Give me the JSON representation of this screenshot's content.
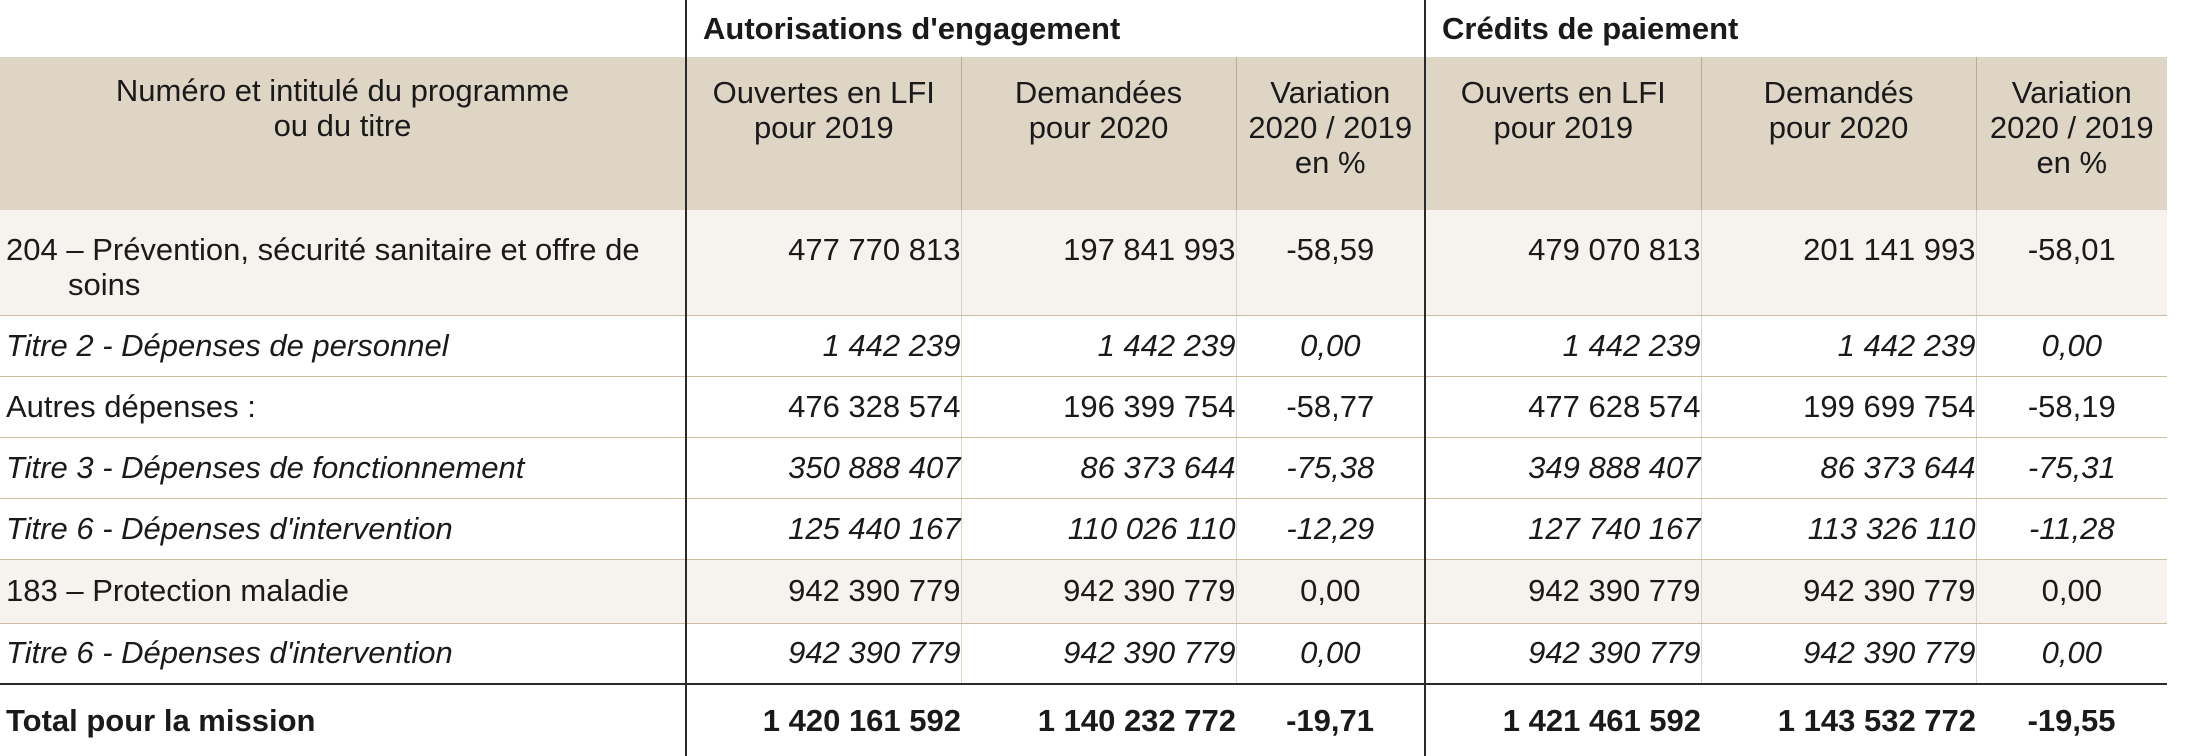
{
  "groups": {
    "ae": "Autorisations d'engagement",
    "cp": "Crédits de paiement"
  },
  "columns": {
    "label_line1": "Numéro et intitulé du programme",
    "label_line2": "ou du titre",
    "ae_open_1": "Ouvertes en LFI",
    "ae_open_2": "pour 2019",
    "ae_req_1": "Demandées",
    "ae_req_2": "pour 2020",
    "ae_var_1": "Variation",
    "ae_var_2": "2020 / 2019",
    "ae_var_3": "en %",
    "cp_open_1": "Ouverts en LFI",
    "cp_open_2": "pour 2019",
    "cp_req_1": "Demandés",
    "cp_req_2": "pour 2020",
    "cp_var_1": "Variation",
    "cp_var_2": "2020 / 2019",
    "cp_var_3": "en %"
  },
  "rows": [
    {
      "label_line1": "204 – Prévention, sécurité sanitaire et offre de",
      "label_line2": "soins",
      "ae_open": "477 770 813",
      "ae_req": "197 841 993",
      "ae_var": "-58,59",
      "cp_open": "479 070 813",
      "cp_req": "201 141 993",
      "cp_var": "-58,01"
    },
    {
      "label": "Titre 2 - Dépenses de personnel",
      "ae_open": "1 442 239",
      "ae_req": "1 442 239",
      "ae_var": "0,00",
      "cp_open": "1 442 239",
      "cp_req": "1 442 239",
      "cp_var": "0,00"
    },
    {
      "label": "Autres dépenses :",
      "ae_open": "476 328 574",
      "ae_req": "196 399 754",
      "ae_var": "-58,77",
      "cp_open": "477 628 574",
      "cp_req": "199 699 754",
      "cp_var": "-58,19"
    },
    {
      "label": "Titre 3 - Dépenses de fonctionnement",
      "ae_open": "350 888 407",
      "ae_req": "86 373 644",
      "ae_var": "-75,38",
      "cp_open": "349 888 407",
      "cp_req": "86 373 644",
      "cp_var": "-75,31"
    },
    {
      "label": "Titre 6 - Dépenses d'intervention",
      "ae_open": "125 440 167",
      "ae_req": "110 026 110",
      "ae_var": "-12,29",
      "cp_open": "127 740 167",
      "cp_req": "113 326 110",
      "cp_var": "-11,28"
    },
    {
      "label": "183 – Protection maladie",
      "ae_open": "942 390 779",
      "ae_req": "942 390 779",
      "ae_var": "0,00",
      "cp_open": "942 390 779",
      "cp_req": "942 390 779",
      "cp_var": "0,00"
    },
    {
      "label": "Titre 6 - Dépenses d'intervention",
      "ae_open": "942 390 779",
      "ae_req": "942 390 779",
      "ae_var": "0,00",
      "cp_open": "942 390 779",
      "cp_req": "942 390 779",
      "cp_var": "0,00"
    }
  ],
  "total": {
    "label": "Total pour la mission",
    "ae_open": "1 420 161 592",
    "ae_req": "1 140 232 772",
    "ae_var": "-19,71",
    "cp_open": "1 421 461 592",
    "cp_req": "1 143 532 772",
    "cp_var": "-19,55"
  }
}
